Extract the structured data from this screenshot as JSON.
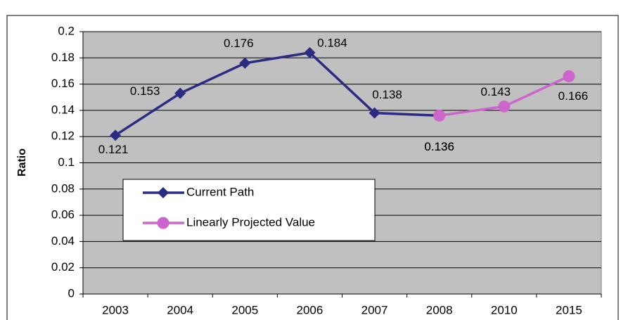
{
  "chart_data": {
    "type": "line",
    "y_label": "Ratio",
    "categories": [
      "2003",
      "2004",
      "2005",
      "2006",
      "2007",
      "2008",
      "2010",
      "2015"
    ],
    "series": [
      {
        "name": "Current Path",
        "color": "#2b2b84",
        "marker": "diamond",
        "values": [
          0.121,
          0.153,
          0.176,
          0.184,
          0.138,
          0.136,
          null,
          null
        ]
      },
      {
        "name": "Linearly Projected Value",
        "color": "#cc66cc",
        "marker": "circle",
        "values": [
          null,
          null,
          null,
          null,
          null,
          0.136,
          0.143,
          0.166
        ]
      }
    ],
    "ylim": [
      0,
      0.2
    ],
    "yticks": [
      0,
      0.02,
      0.04,
      0.06,
      0.08,
      0.1,
      0.12,
      0.14,
      0.16,
      0.18,
      0.2
    ],
    "grid": true,
    "data_labels": true
  }
}
